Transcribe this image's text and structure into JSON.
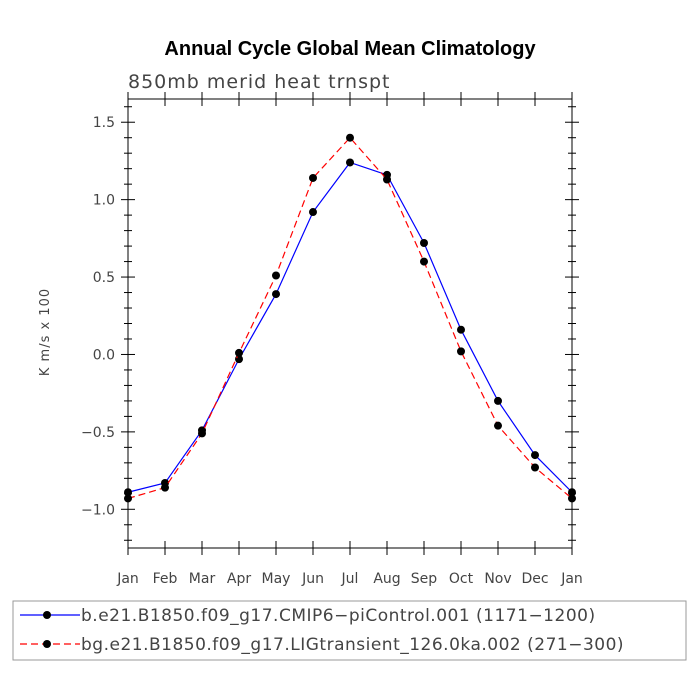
{
  "chart_data": {
    "type": "line",
    "title": "Annual Cycle Global Mean Climatology",
    "subtitle": "850mb merid heat trnspt",
    "ylabel": "K m/s x 100",
    "xlabel": "",
    "categories": [
      "Jan",
      "Feb",
      "Mar",
      "Apr",
      "May",
      "Jun",
      "Jul",
      "Aug",
      "Sep",
      "Oct",
      "Nov",
      "Dec",
      "Jan"
    ],
    "ylim": [
      -1.25,
      1.65
    ],
    "yticks": [
      -1.0,
      -0.5,
      0.0,
      0.5,
      1.0,
      1.5
    ],
    "ytick_labels": [
      "−1.0",
      "−0.5",
      "0.0",
      "0.5",
      "1.0",
      "1.5"
    ],
    "grid": false,
    "legend_position": "bottom",
    "series": [
      {
        "name": "b.e21.B1850.f09_g17.CMIP6−piControl.001 (1171−1200)",
        "color": "#0000ff",
        "dash": "solid",
        "values": [
          -0.89,
          -0.83,
          -0.49,
          -0.03,
          0.39,
          0.92,
          1.24,
          1.16,
          0.72,
          0.16,
          -0.3,
          -0.65,
          -0.89
        ]
      },
      {
        "name": "bg.e21.B1850.f09_g17.LIGtransient_126.0ka.002 (271−300)",
        "color": "#ff0000",
        "dash": "dashed",
        "values": [
          -0.93,
          -0.86,
          -0.51,
          0.01,
          0.51,
          1.14,
          1.4,
          1.13,
          0.6,
          0.02,
          -0.46,
          -0.73,
          -0.93
        ]
      }
    ]
  }
}
